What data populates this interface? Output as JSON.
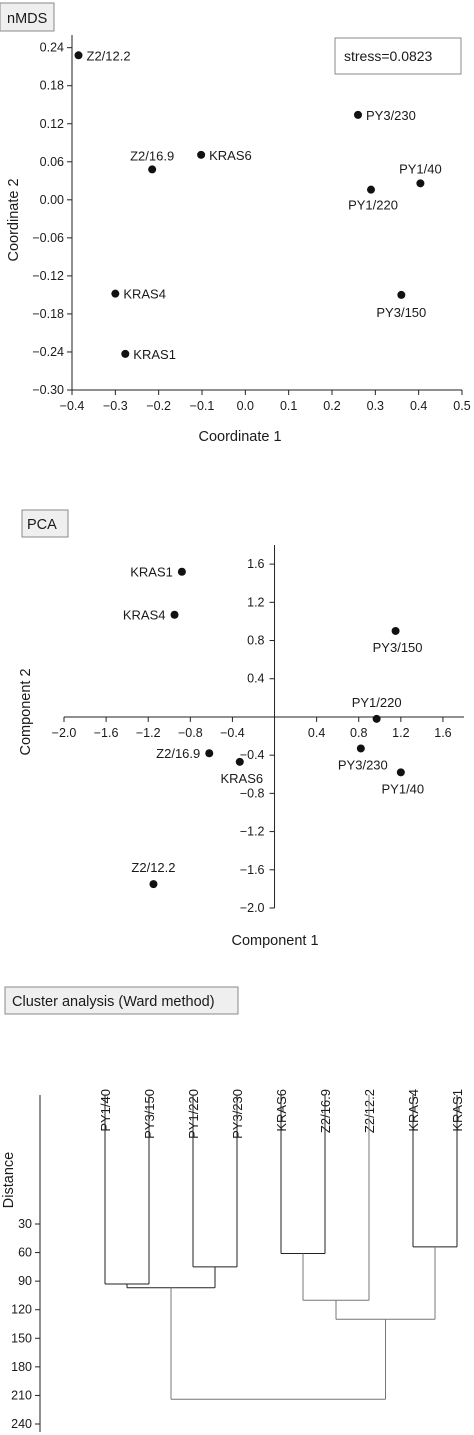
{
  "chart_data": [
    {
      "type": "scatter",
      "title": "nMDS",
      "annotation": "stress=0.0823",
      "xlabel": "Coordinate 1",
      "ylabel": "Coordinate 2",
      "xlim": [
        -0.4,
        0.5
      ],
      "ylim": [
        -0.3,
        0.26
      ],
      "xticks": [
        -0.4,
        -0.3,
        -0.2,
        -0.1,
        0.0,
        0.1,
        0.2,
        0.3,
        0.4,
        0.5
      ],
      "xtick_labels": [
        "−0.4",
        "−0.3",
        "−0.2",
        "−0.1",
        "0.0",
        "0.1",
        "0.2",
        "0.3",
        "0.4",
        "0.5"
      ],
      "yticks": [
        0.24,
        0.18,
        0.12,
        0.06,
        0.0,
        -0.06,
        -0.12,
        -0.18,
        -0.24,
        -0.3
      ],
      "ytick_labels": [
        "0.24",
        "0.18",
        "0.12",
        "0.06",
        "0.00",
        "−0.06",
        "−0.12",
        "−0.18",
        "−0.24",
        "−0.30"
      ],
      "points": [
        {
          "label": "Z2/12.2",
          "x": -0.385,
          "y": 0.228,
          "pos": "right"
        },
        {
          "label": "PY3/230",
          "x": 0.26,
          "y": 0.134,
          "pos": "right"
        },
        {
          "label": "Z2/16.9",
          "x": -0.215,
          "y": 0.048,
          "pos": "above-left"
        },
        {
          "label": "KRAS6",
          "x": -0.102,
          "y": 0.071,
          "pos": "right"
        },
        {
          "label": "PY1/40",
          "x": 0.404,
          "y": 0.026,
          "pos": "above"
        },
        {
          "label": "PY1/220",
          "x": 0.29,
          "y": 0.016,
          "pos": "below-left"
        },
        {
          "label": "KRAS4",
          "x": -0.3,
          "y": -0.148,
          "pos": "right"
        },
        {
          "label": "PY3/150",
          "x": 0.36,
          "y": -0.15,
          "pos": "below"
        },
        {
          "label": "KRAS1",
          "x": -0.277,
          "y": -0.243,
          "pos": "right"
        }
      ]
    },
    {
      "type": "scatter",
      "title": "PCA",
      "xlabel": "Component 1",
      "ylabel": "Component 2",
      "xlim": [
        -2.0,
        1.8
      ],
      "ylim": [
        -2.0,
        1.8
      ],
      "xticks": [
        -2.0,
        -1.6,
        -1.2,
        -0.8,
        -0.4,
        0.4,
        0.8,
        1.2,
        1.6
      ],
      "xtick_labels": [
        "−2.0",
        "−1.6",
        "−1.2",
        "−0.8",
        "−0.4",
        "0.4",
        "0.8",
        "1.2",
        "1.6"
      ],
      "yticks": [
        1.6,
        1.2,
        0.8,
        0.4,
        -0.4,
        -0.8,
        -1.2,
        -1.6,
        -2.0
      ],
      "ytick_labels": [
        "1.6",
        "1.2",
        "0.8",
        "0.4",
        "−0.4",
        "−0.8",
        "−1.2",
        "−1.6",
        "−2.0"
      ],
      "points": [
        {
          "label": "KRAS1",
          "x": -0.88,
          "y": 1.52,
          "pos": "left"
        },
        {
          "label": "KRAS4",
          "x": -0.95,
          "y": 1.07,
          "pos": "left"
        },
        {
          "label": "PY3/150",
          "x": 1.15,
          "y": 0.9,
          "pos": "below"
        },
        {
          "label": "PY1/220",
          "x": 0.97,
          "y": -0.02,
          "pos": "above"
        },
        {
          "label": "Z2/16.9",
          "x": -0.62,
          "y": -0.38,
          "pos": "left"
        },
        {
          "label": "KRAS6",
          "x": -0.33,
          "y": -0.47,
          "pos": "below"
        },
        {
          "label": "PY3/230",
          "x": 0.82,
          "y": -0.33,
          "pos": "below"
        },
        {
          "label": "PY1/40",
          "x": 1.2,
          "y": -0.58,
          "pos": "below"
        },
        {
          "label": "Z2/12.2",
          "x": -1.15,
          "y": -1.75,
          "pos": "above"
        }
      ]
    },
    {
      "type": "dendrogram",
      "title": "Cluster analysis (Ward method)",
      "ylabel": "Distance",
      "ylim": [
        0,
        240
      ],
      "yticks": [
        30,
        60,
        90,
        120,
        150,
        180,
        210,
        240
      ],
      "leaves": [
        "PY1/40",
        "PY3/150",
        "PY1/220",
        "PY3/230",
        "KRAS6",
        "Z2/16.9",
        "Z2/12.2",
        "KRAS4",
        "KRAS1"
      ],
      "merges": [
        {
          "left": 0,
          "right": 1,
          "height": 93
        },
        {
          "left": 2,
          "right": 3,
          "height": 75
        },
        {
          "left": 7,
          "right": 8,
          "height": 54
        },
        {
          "left": 4,
          "right": 5,
          "height": 61
        },
        {
          "left": "m3",
          "right": 6,
          "height": 110
        },
        {
          "left": "m4",
          "right": "m2",
          "height": 130
        },
        {
          "left": "m0",
          "right": "m1",
          "height": 97
        },
        {
          "left": "m6",
          "right": "m5",
          "height": 214
        }
      ]
    }
  ]
}
